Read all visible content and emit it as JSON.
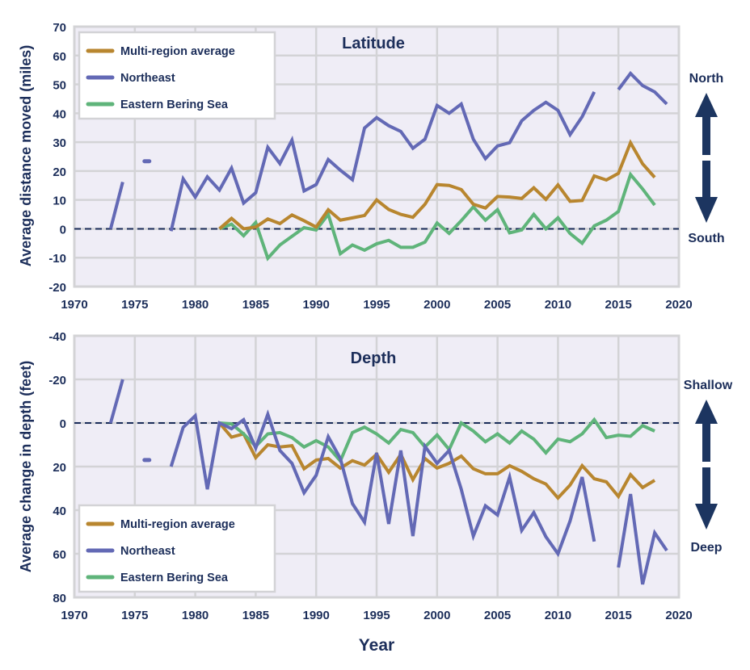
{
  "colors": {
    "multi_region_average": "#b8862f",
    "northeast": "#6369b5",
    "eastern_bering_sea": "#5fb47a",
    "text": "#1c2e5a",
    "plot_bg": "#efedf6",
    "grid": "#d3d3d6",
    "zero_line": "#1c2e5a",
    "arrow": "#1c3560"
  },
  "x_axis_label": "Year",
  "chart_data": [
    {
      "type": "line",
      "title": "Latitude",
      "xlabel": "Year",
      "ylabel": "Average distance moved (miles)",
      "xlim": [
        1970,
        2020
      ],
      "ylim": [
        -20,
        70
      ],
      "xticks": [
        "1970",
        "1975",
        "1980",
        "1985",
        "1990",
        "1995",
        "2000",
        "2005",
        "2010",
        "2015",
        "2020"
      ],
      "yticks": [
        "70",
        "60",
        "50",
        "40",
        "30",
        "20",
        "10",
        "0",
        "-10",
        "-20"
      ],
      "grid": true,
      "legend_position": "top-left",
      "direction_labels": {
        "up": "North",
        "down": "South"
      },
      "series": [
        {
          "name": "Multi-region average",
          "key": "multi_region_average",
          "x": [
            1982,
            1983,
            1984,
            1985,
            1986,
            1987,
            1988,
            1989,
            1990,
            1991,
            1992,
            1993,
            1994,
            1995,
            1996,
            1997,
            1998,
            1999,
            2000,
            2001,
            2002,
            2003,
            2004,
            2005,
            2006,
            2007,
            2008,
            2009,
            2010,
            2011,
            2012,
            2013,
            2014,
            2015,
            2016,
            2017,
            2018
          ],
          "values": [
            0,
            3.6,
            0,
            0.6,
            3.4,
            1.8,
            4.8,
            2.8,
            0.6,
            6.6,
            3,
            3.8,
            4.6,
            10,
            6.7,
            5,
            4,
            8.5,
            15.3,
            15,
            13.6,
            8.5,
            7.2,
            11.2,
            11,
            10.5,
            14.2,
            10.2,
            15.2,
            9.5,
            9.8,
            18.3,
            16.9,
            19.2,
            29.8,
            22.5,
            17.8
          ]
        },
        {
          "name": "Northeast",
          "key": "northeast",
          "x": [
            1973,
            1974,
            1975,
            1976,
            1977,
            1978,
            1979,
            1980,
            1981,
            1982,
            1983,
            1984,
            1985,
            1986,
            1987,
            1988,
            1989,
            1990,
            1991,
            1992,
            1993,
            1994,
            1995,
            1996,
            1997,
            1998,
            1999,
            2000,
            2001,
            2002,
            2003,
            2004,
            2005,
            2006,
            2007,
            2008,
            2009,
            2010,
            2011,
            2012,
            2013,
            2014,
            2015,
            2016,
            2017,
            2018,
            2019
          ],
          "values": [
            0,
            16.2,
            null,
            23.4,
            null,
            -0.8,
            17.3,
            11,
            18,
            13.4,
            21,
            8.9,
            12.5,
            28.2,
            22.6,
            30.7,
            13.1,
            15.3,
            24,
            20.3,
            17,
            34.9,
            38.5,
            35.7,
            33.7,
            27.9,
            31,
            42.7,
            40,
            43.2,
            31,
            24.3,
            28.7,
            29.8,
            37.4,
            41,
            43.8,
            41,
            32.6,
            38.8,
            47.4,
            null,
            48.2,
            53.8,
            49.6,
            47.4,
            43.2
          ]
        },
        {
          "name": "Eastern Bering Sea",
          "key": "eastern_bering_sea",
          "x": [
            1982,
            1983,
            1984,
            1985,
            1986,
            1987,
            1988,
            1989,
            1990,
            1991,
            1992,
            1993,
            1994,
            1995,
            1996,
            1997,
            1998,
            1999,
            2000,
            2001,
            2002,
            2003,
            2004,
            2005,
            2006,
            2007,
            2008,
            2009,
            2010,
            2011,
            2012,
            2013,
            2014,
            2015,
            2016,
            2017,
            2018
          ],
          "values": [
            0,
            1.6,
            -2.4,
            2.2,
            -10.2,
            -5.6,
            -2.6,
            0.4,
            -0.4,
            5,
            -8.6,
            -5.6,
            -7.4,
            -5.2,
            -4,
            -6.4,
            -6.4,
            -4.6,
            2,
            -1.6,
            2.8,
            7.6,
            3,
            6.6,
            -1.4,
            -0.4,
            5,
            0,
            3.8,
            -1.6,
            -5,
            1,
            3,
            6,
            18.8,
            13.8,
            8.2
          ]
        }
      ]
    },
    {
      "type": "line",
      "title": "Depth",
      "xlabel": "Year",
      "ylabel": "Average change in depth (feet)",
      "xlim": [
        1970,
        2020
      ],
      "ylim": [
        80,
        -40
      ],
      "y_inverted": true,
      "xticks": [
        "1970",
        "1975",
        "1980",
        "1985",
        "1990",
        "1995",
        "2000",
        "2005",
        "2010",
        "2015",
        "2020"
      ],
      "yticks": [
        "-40",
        "-20",
        "0",
        "20",
        "40",
        "60",
        "80"
      ],
      "grid": true,
      "legend_position": "bottom-left",
      "direction_labels": {
        "up": "Shallow",
        "down": "Deep"
      },
      "series": [
        {
          "name": "Multi-region average",
          "key": "multi_region_average",
          "x": [
            1982,
            1983,
            1984,
            1985,
            1986,
            1987,
            1988,
            1989,
            1990,
            1991,
            1992,
            1993,
            1994,
            1995,
            1996,
            1997,
            1998,
            1999,
            2000,
            2001,
            2002,
            2003,
            2004,
            2005,
            2006,
            2007,
            2008,
            2009,
            2010,
            2011,
            2012,
            2013,
            2014,
            2015,
            2016,
            2017,
            2018
          ],
          "values": [
            0,
            6.5,
            5,
            15.9,
            10,
            11,
            10.4,
            21,
            17,
            16.3,
            20.7,
            17.3,
            19.3,
            14.4,
            22.6,
            14.4,
            26,
            16.3,
            20.7,
            18.5,
            15.2,
            21,
            23.3,
            23.3,
            19.6,
            22.2,
            25.6,
            28,
            34.4,
            28.5,
            19.6,
            25.6,
            27,
            33.7,
            23.7,
            29.6,
            26.3
          ]
        },
        {
          "name": "Northeast",
          "key": "northeast",
          "x": [
            1973,
            1974,
            1975,
            1976,
            1977,
            1978,
            1979,
            1980,
            1981,
            1982,
            1983,
            1984,
            1985,
            1986,
            1987,
            1988,
            1989,
            1990,
            1991,
            1992,
            1993,
            1994,
            1995,
            1996,
            1997,
            1998,
            1999,
            2000,
            2001,
            2002,
            2003,
            2004,
            2005,
            2006,
            2007,
            2008,
            2009,
            2010,
            2011,
            2012,
            2013,
            2014,
            2015,
            2016,
            2017,
            2018,
            2019
          ],
          "values": [
            0,
            -20,
            null,
            17,
            null,
            20,
            2,
            -3.3,
            30.4,
            0,
            2.6,
            -1.5,
            11.5,
            -4,
            12.6,
            18.5,
            32,
            24,
            6.3,
            16.3,
            37,
            45.5,
            13.7,
            46.3,
            12.6,
            51.9,
            10.7,
            18.5,
            12.6,
            30.4,
            51.9,
            38,
            42.2,
            24.8,
            49.3,
            41.1,
            52.2,
            60,
            45,
            24.8,
            54.4,
            null,
            66.3,
            32.6,
            74,
            50.4,
            58.5
          ]
        },
        {
          "name": "Eastern Bering Sea",
          "key": "eastern_bering_sea",
          "x": [
            1982,
            1983,
            1984,
            1985,
            1986,
            1987,
            1988,
            1989,
            1990,
            1991,
            1992,
            1993,
            1994,
            1995,
            1996,
            1997,
            1998,
            1999,
            2000,
            2001,
            2002,
            2003,
            2004,
            2005,
            2006,
            2007,
            2008,
            2009,
            2010,
            2011,
            2012,
            2013,
            2014,
            2015,
            2016,
            2017,
            2018
          ],
          "values": [
            0,
            0.4,
            5,
            10.7,
            5,
            4.4,
            6.7,
            11,
            8.1,
            11,
            17.4,
            4.4,
            1.9,
            5,
            9.2,
            3,
            4.4,
            11,
            5.5,
            12.2,
            0,
            3.7,
            8.6,
            5,
            9.2,
            3.7,
            7.4,
            13.7,
            7.4,
            8.6,
            5,
            -1.5,
            6.7,
            5.6,
            6.1,
            1.2,
            3.7
          ]
        }
      ]
    }
  ]
}
